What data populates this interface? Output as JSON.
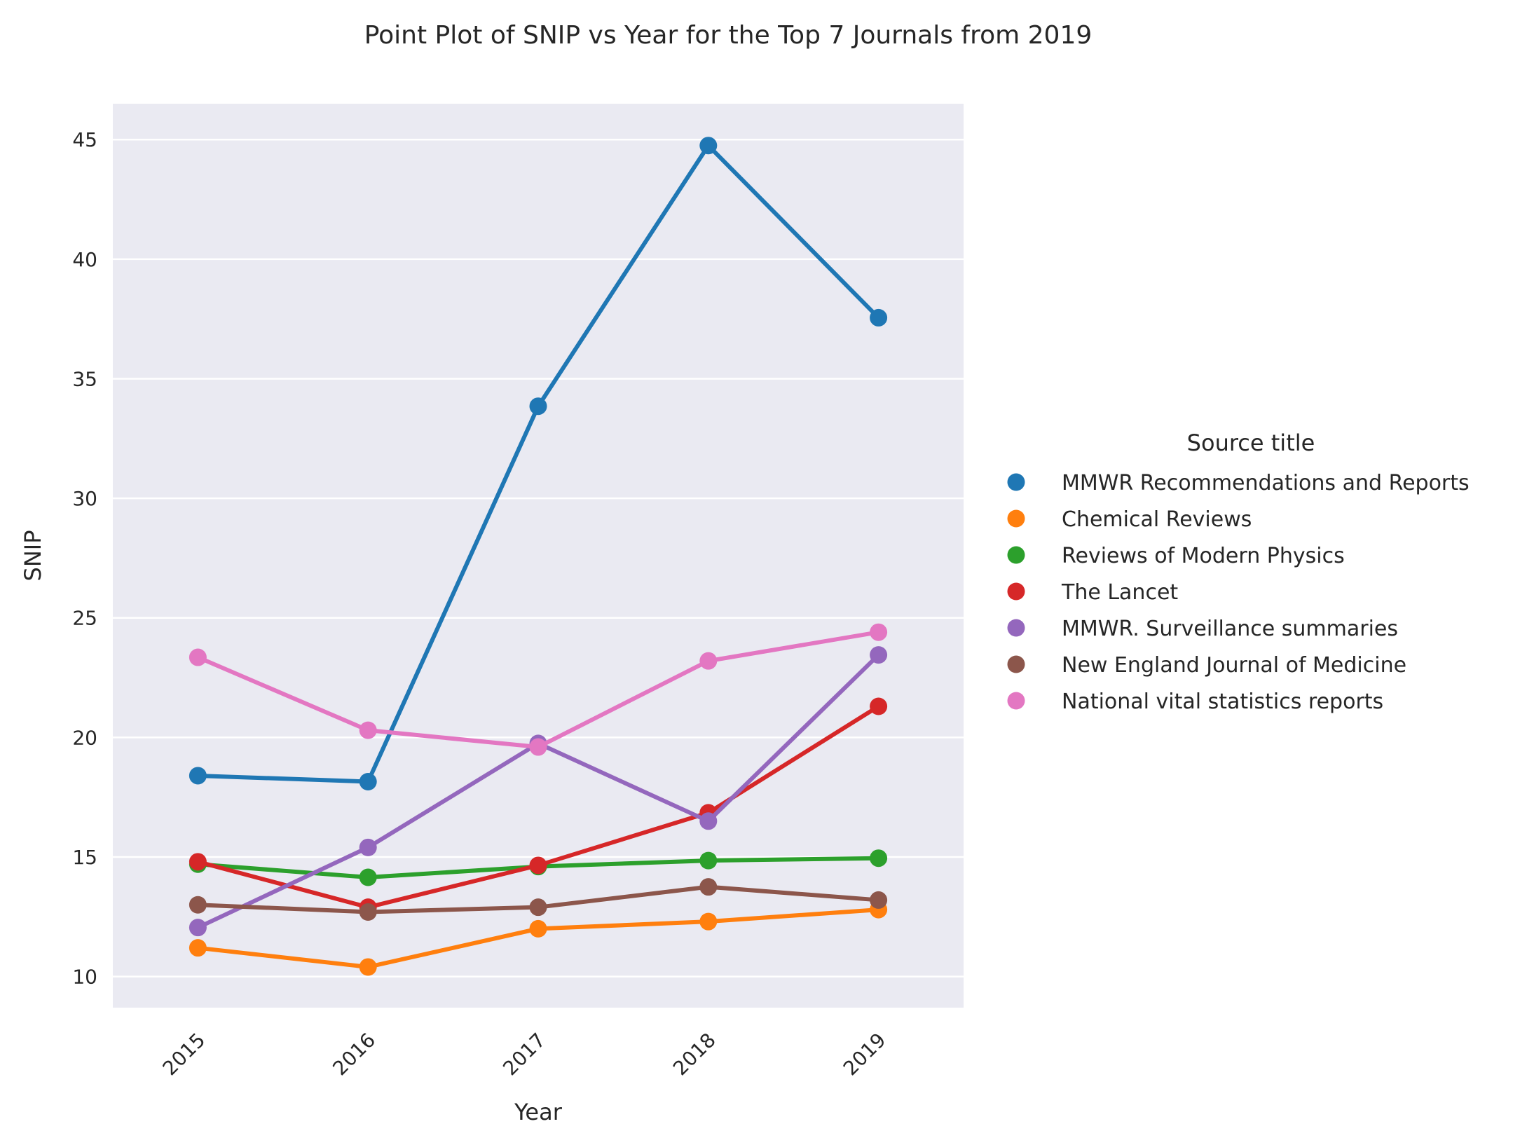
{
  "chart_data": {
    "type": "line",
    "title": "Point Plot of SNIP vs Year for the Top 7 Journals from 2019",
    "xlabel": "Year",
    "ylabel": "SNIP",
    "categories": [
      "2015",
      "2016",
      "2017",
      "2018",
      "2019"
    ],
    "ylim": [
      8.7,
      46.5
    ],
    "yticks": [
      10,
      15,
      20,
      25,
      30,
      35,
      40,
      45
    ],
    "grid": true,
    "legend_title": "Source title",
    "legend_position": "right",
    "series": [
      {
        "name": "MMWR Recommendations and Reports",
        "color": "#1f77b4",
        "values": [
          18.4,
          18.15,
          33.85,
          44.75,
          37.55
        ]
      },
      {
        "name": "Chemical Reviews",
        "color": "#ff7f0e",
        "values": [
          11.2,
          10.4,
          12.0,
          12.3,
          12.8
        ]
      },
      {
        "name": "Reviews of Modern Physics",
        "color": "#2ca02c",
        "values": [
          14.7,
          14.15,
          14.6,
          14.85,
          14.95
        ]
      },
      {
        "name": "The Lancet",
        "color": "#d62728",
        "values": [
          14.8,
          12.9,
          14.65,
          16.85,
          21.3
        ]
      },
      {
        "name": "MMWR. Surveillance summaries",
        "color": "#9467bd",
        "values": [
          12.05,
          15.4,
          19.75,
          16.5,
          23.45
        ]
      },
      {
        "name": "New England Journal of Medicine",
        "color": "#8c564b",
        "values": [
          13.0,
          12.7,
          12.9,
          13.75,
          13.2
        ]
      },
      {
        "name": "National vital statistics reports",
        "color": "#e377c2",
        "values": [
          23.35,
          20.3,
          19.6,
          23.2,
          24.4
        ]
      }
    ]
  },
  "colors": {
    "plot_background": "#eaeaf2",
    "grid": "#ffffff",
    "text": "#262626"
  }
}
